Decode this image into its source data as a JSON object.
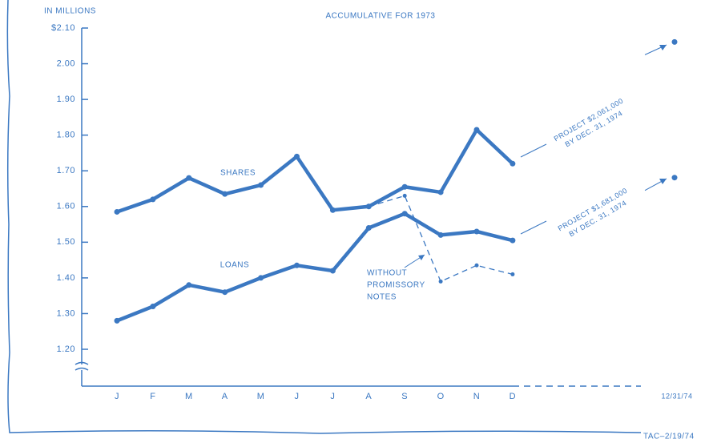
{
  "chart_data": {
    "type": "line",
    "title": "ACCUMULATIVE FOR 1973",
    "y_axis_label": "IN MILLIONS",
    "categories": [
      "J",
      "F",
      "M",
      "A",
      "M",
      "J",
      "J",
      "A",
      "S",
      "O",
      "N",
      "D",
      "12/31/74"
    ],
    "series": [
      {
        "name": "SHARES",
        "color": "#3b78c2",
        "values": [
          1.585,
          1.62,
          1.68,
          1.635,
          1.66,
          1.74,
          1.59,
          1.6,
          1.655,
          1.64,
          1.815,
          1.72,
          null
        ]
      },
      {
        "name": "LOANS",
        "color": "#3b78c2",
        "values": [
          1.28,
          1.32,
          1.38,
          1.36,
          1.4,
          1.435,
          1.42,
          1.54,
          1.58,
          1.52,
          1.53,
          1.505,
          null
        ]
      },
      {
        "name": [
          "WITHOUT",
          "PROMISSORY",
          "NOTES"
        ],
        "color": "#3b78c2",
        "dashed": true,
        "values": [
          null,
          null,
          null,
          null,
          null,
          null,
          null,
          1.6,
          1.63,
          1.39,
          1.435,
          1.41,
          null
        ]
      }
    ],
    "projections": [
      {
        "lines": [
          "PROJECT $2,061,000",
          "BY DEC. 31, 1974"
        ],
        "value": 2.061
      },
      {
        "lines": [
          "PROJECT $1,681,000",
          "BY DEC. 31, 1974"
        ],
        "value": 1.681
      }
    ],
    "ylim": [
      1.2,
      2.1
    ],
    "yticks": [
      {
        "value": 1.2,
        "label": "1.20"
      },
      {
        "value": 1.3,
        "label": "1.30"
      },
      {
        "value": 1.4,
        "label": "1.40"
      },
      {
        "value": 1.5,
        "label": "1.50"
      },
      {
        "value": 1.6,
        "label": "1.60"
      },
      {
        "value": 1.7,
        "label": "1.70"
      },
      {
        "value": 1.8,
        "label": "1.80"
      },
      {
        "value": 1.9,
        "label": "1.90"
      },
      {
        "value": 2.0,
        "label": "2.00"
      },
      {
        "value": 2.1,
        "label": "$2.10"
      }
    ],
    "footer": "TAC–2/19/74"
  }
}
